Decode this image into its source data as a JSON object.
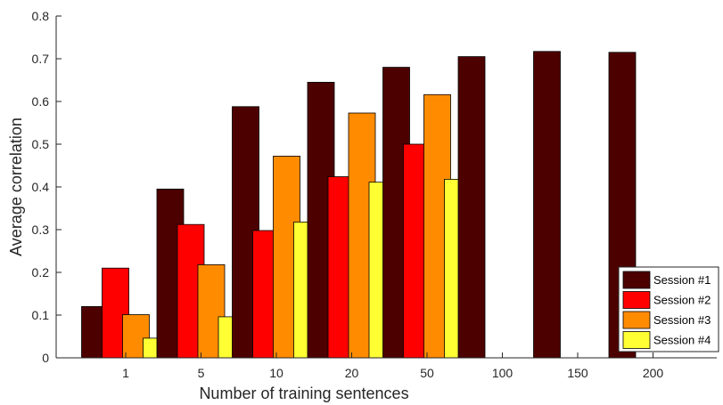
{
  "chart_data": {
    "type": "bar",
    "title": "",
    "xlabel": "Number of training sentences",
    "ylabel": "Average correlation",
    "categories": [
      "1",
      "5",
      "10",
      "20",
      "50",
      "100",
      "150",
      "200"
    ],
    "ylim": [
      0,
      0.8
    ],
    "yticks": [
      "0",
      "0.1",
      "0.2",
      "0.3",
      "0.4",
      "0.5",
      "0.6",
      "0.7",
      "0.8"
    ],
    "grid": false,
    "legend_position": "bottom-right",
    "series": [
      {
        "name": "Session #1",
        "color": "#4d0000",
        "values": [
          0.12,
          0.395,
          0.588,
          0.645,
          0.68,
          0.705,
          0.717,
          0.715
        ]
      },
      {
        "name": "Session #2",
        "color": "#ff0000",
        "values": [
          0.21,
          0.312,
          0.298,
          0.424,
          0.5,
          null,
          null,
          null
        ]
      },
      {
        "name": "Session #3",
        "color": "#ff8c00",
        "values": [
          0.101,
          0.218,
          0.472,
          0.573,
          0.616,
          null,
          null,
          null
        ]
      },
      {
        "name": "Session #4",
        "color": "#ffff33",
        "values": [
          0.046,
          0.096,
          0.318,
          0.411,
          0.418,
          null,
          null,
          null
        ]
      }
    ]
  }
}
